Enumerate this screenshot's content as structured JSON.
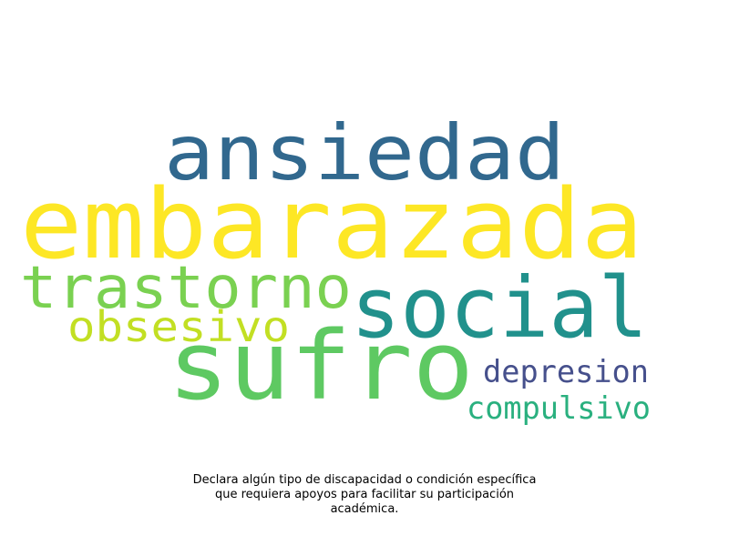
{
  "chart_data": {
    "type": "wordcloud",
    "words": [
      {
        "text": "embarazada",
        "weight": 1.0,
        "color": "#fde725"
      },
      {
        "text": "sufro",
        "weight": 0.95,
        "color": "#5ec962"
      },
      {
        "text": "ansiedad",
        "weight": 0.8,
        "color": "#31688e"
      },
      {
        "text": "social",
        "weight": 0.8,
        "color": "#21918c"
      },
      {
        "text": "trastorno",
        "weight": 0.6,
        "color": "#7ad151"
      },
      {
        "text": "obsesivo",
        "weight": 0.45,
        "color": "#c2df23"
      },
      {
        "text": "depresion",
        "weight": 0.35,
        "color": "#46508c"
      },
      {
        "text": "compulsivo",
        "weight": 0.35,
        "color": "#2ab07f"
      }
    ]
  },
  "caption": {
    "lines": [
      "Declara algún tipo de discapacidad o condición específica",
      "que requiera apoyos para facilitar su participación",
      "académica."
    ]
  }
}
